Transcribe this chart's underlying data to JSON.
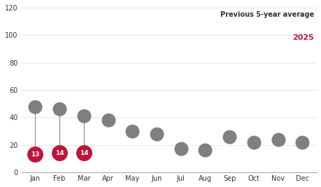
{
  "months": [
    "Jan",
    "Feb",
    "Mar",
    "Apr",
    "May",
    "Jun",
    "Jul",
    "Aug",
    "Sep",
    "Oct",
    "Nov",
    "Dec"
  ],
  "avg_values": [
    48,
    46,
    41,
    38,
    30,
    28,
    17,
    16,
    26,
    22,
    24,
    22
  ],
  "current_values": [
    13,
    14,
    14,
    null,
    null,
    null,
    null,
    null,
    null,
    null,
    null,
    null
  ],
  "avg_color": "#7f7f7f",
  "current_color": "#c0143c",
  "avg_dot_size": 180,
  "current_dot_size": 200,
  "legend_avg_text": "Previous 5-year average",
  "legend_current_text": "2025",
  "ylim": [
    0,
    120
  ],
  "yticks": [
    0,
    20,
    40,
    60,
    80,
    100,
    120
  ],
  "background_color": "#ffffff",
  "text_color": "#333333",
  "line_color": "#888888"
}
